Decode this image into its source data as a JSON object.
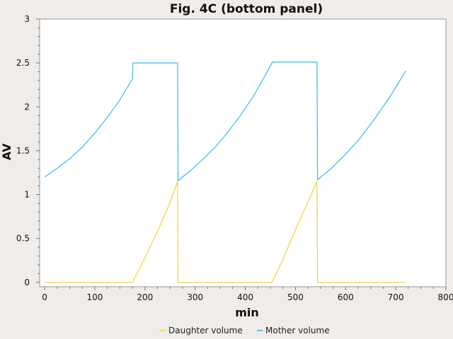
{
  "chart_data": {
    "type": "line",
    "title": "Fig. 4C (bottom panel)",
    "xlabel": "min",
    "ylabel": "AV",
    "xlim": [
      -10,
      800
    ],
    "ylim": [
      -0.05,
      3
    ],
    "xticks": [
      0,
      100,
      200,
      300,
      400,
      500,
      600,
      700,
      800
    ],
    "xtick_labels": [
      "0",
      "100",
      "200",
      "300",
      "400",
      "500",
      "600",
      "700",
      "800"
    ],
    "yticks": [
      0,
      0.5,
      1,
      1.5,
      2,
      2.5,
      3
    ],
    "ytick_labels": [
      "0",
      "0.5",
      "1",
      "1.5",
      "2",
      "2.5",
      "3"
    ],
    "grid": false,
    "legend_position": "bottom",
    "series": [
      {
        "name": "Daughter volume",
        "color": "#f2d232",
        "x": [
          0,
          175,
          200,
          225,
          250,
          265,
          266,
          453,
          475,
          500,
          525,
          543,
          544,
          720
        ],
        "y": [
          0,
          0,
          0.28,
          0.58,
          0.91,
          1.15,
          0,
          0,
          0.26,
          0.6,
          0.92,
          1.15,
          0,
          0
        ]
      },
      {
        "name": "Mother volume",
        "color": "#33bbe8",
        "x": [
          0,
          25,
          50,
          75,
          100,
          125,
          150,
          175,
          176,
          265,
          266,
          290,
          315,
          340,
          365,
          390,
          415,
          440,
          453,
          454,
          543,
          544,
          570,
          600,
          630,
          660,
          690,
          720
        ],
        "y": [
          1.2,
          1.3,
          1.41,
          1.54,
          1.7,
          1.88,
          2.08,
          2.32,
          2.5,
          2.5,
          1.16,
          1.27,
          1.4,
          1.54,
          1.71,
          1.9,
          2.11,
          2.36,
          2.5,
          2.51,
          2.51,
          1.17,
          1.29,
          1.46,
          1.65,
          1.88,
          2.13,
          2.41
        ]
      }
    ]
  }
}
